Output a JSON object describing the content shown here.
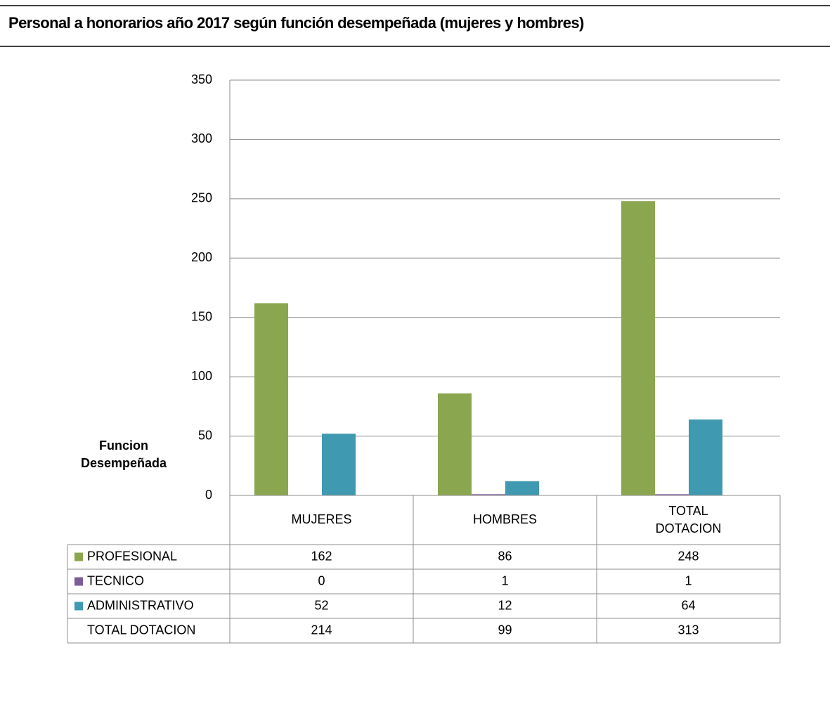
{
  "chart_data": {
    "type": "bar",
    "title": "Personal a honorarios año 2017 según función desempeñada (mujeres y hombres)",
    "y_label": "Funcion Desempeñada",
    "categories": [
      "MUJERES",
      "HOMBRES",
      "TOTAL DOTACION"
    ],
    "series": [
      {
        "name": "PROFESIONAL",
        "color": "#8aa64e",
        "values": [
          162,
          86,
          248
        ]
      },
      {
        "name": "TECNICO",
        "color": "#7b5c9b",
        "values": [
          0,
          1,
          1
        ]
      },
      {
        "name": "ADMINISTRATIVO",
        "color": "#3f99b1",
        "values": [
          52,
          12,
          64
        ]
      }
    ],
    "table_totals": {
      "name": "TOTAL DOTACION",
      "values": [
        214,
        99,
        313
      ]
    },
    "ylim": [
      0,
      350
    ],
    "yticks": [
      0,
      50,
      100,
      150,
      200,
      250,
      300,
      350
    ],
    "grid": true
  }
}
